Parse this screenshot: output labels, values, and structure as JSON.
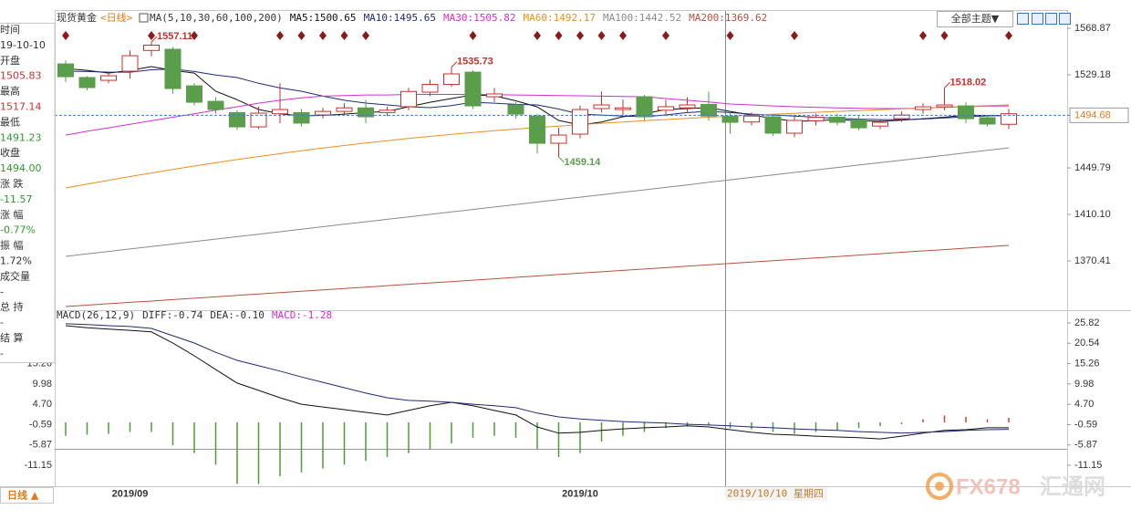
{
  "header": {
    "title": "现货黄金",
    "period": "<日线>",
    "ma_label": "MA(5,10,30,60,100,200)"
  },
  "toolbar": {
    "theme_button": "全部主题▼",
    "period_button": "日线 ▲"
  },
  "info_panel": {
    "rows": [
      {
        "label": "时间",
        "value": "19-10-10",
        "color": "#333333"
      },
      {
        "label": "开盘",
        "value": "1505.83",
        "color": "#d03030"
      },
      {
        "label": "最高",
        "value": "1517.14",
        "color": "#d03030"
      },
      {
        "label": "最低",
        "value": "1491.23",
        "color": "#2e9a2e"
      },
      {
        "label": "收盘",
        "value": "1494.00",
        "color": "#2e9a2e"
      },
      {
        "label": "涨 跌",
        "value": "-11.57",
        "color": "#2e9a2e"
      },
      {
        "label": "涨 幅",
        "value": "-0.77%",
        "color": "#2e9a2e"
      },
      {
        "label": "振 幅",
        "value": "1.72%",
        "color": "#333333"
      },
      {
        "label": "成交量",
        "value": "-",
        "color": "#333333"
      },
      {
        "label": "总 持",
        "value": "-",
        "color": "#333333"
      },
      {
        "label": "结 算",
        "value": "-",
        "color": "#333333"
      }
    ]
  },
  "crosshair_label": "2019/10/10 星期四",
  "watermark": {
    "brand": "FX678",
    "name": "汇通网"
  },
  "chart_data": [
    {
      "type": "candlestick",
      "categories": [
        null,
        null,
        null,
        "2019/09",
        null,
        null,
        null,
        null,
        null,
        null,
        null,
        null,
        null,
        null,
        null,
        null,
        null,
        null,
        null,
        null,
        null,
        null,
        null,
        null,
        "2019/10",
        null,
        null,
        null,
        null,
        null,
        null,
        null,
        null,
        null,
        null,
        null,
        null,
        null,
        null,
        null,
        null,
        null,
        null,
        null,
        null
      ],
      "open": [
        1538.5,
        1526.9,
        1524.5,
        1532.3,
        1550,
        1551,
        1519.8,
        1506.6,
        1497,
        1484.8,
        1496,
        1497,
        1495,
        1498,
        1501,
        1497,
        1502,
        1514.4,
        1521,
        1531.5,
        1510.5,
        1503.5,
        1494,
        1470.8,
        1478.6,
        1500.4,
        1499.6,
        1510.5,
        1499,
        1501,
        1504,
        1494,
        1489,
        1493.4,
        1479.4,
        1490,
        1493,
        1491,
        1485.5,
        1491.8,
        1499.6,
        1501.9,
        1502.7,
        1492.6,
        1487
      ],
      "high": [
        1541.6,
        1528,
        1530,
        1550,
        1557.11,
        1553,
        1522,
        1510,
        1499,
        1502,
        1522,
        1500,
        1501,
        1505,
        1508,
        1502,
        1518,
        1525,
        1535.73,
        1533,
        1518,
        1506,
        1496,
        1484,
        1503,
        1515,
        1508,
        1512,
        1508,
        1510,
        1515,
        1498,
        1497,
        1495,
        1494,
        1496,
        1496,
        1494,
        1491,
        1498,
        1505,
        1518.02,
        1506,
        1495,
        1500
      ],
      "low": [
        1523,
        1516,
        1522,
        1526,
        1545,
        1513,
        1503,
        1496,
        1482,
        1483,
        1488,
        1485,
        1492,
        1496,
        1488,
        1494,
        1499,
        1511,
        1519,
        1500,
        1506,
        1492,
        1462,
        1459.14,
        1475,
        1497,
        1495,
        1490,
        1494,
        1497,
        1490,
        1479,
        1486,
        1477,
        1476,
        1486,
        1486,
        1482,
        1483,
        1489,
        1496,
        1499,
        1488,
        1485,
        1483
      ],
      "close": [
        1527.6,
        1518.3,
        1528.4,
        1545.5,
        1554.5,
        1517.5,
        1505.8,
        1499.6,
        1484.8,
        1496.5,
        1499.6,
        1488,
        1498,
        1501,
        1493.4,
        1499,
        1515,
        1521,
        1530,
        1502.7,
        1512.9,
        1495.7,
        1470.8,
        1477.8,
        1499.6,
        1503.5,
        1501,
        1493.4,
        1502,
        1503.5,
        1494,
        1488.7,
        1494,
        1479.4,
        1490.3,
        1493,
        1488.7,
        1484,
        1488.7,
        1494.9,
        1501.9,
        1503.5,
        1491.8,
        1487.2,
        1496
      ],
      "up_color": "#c8302c",
      "down_color": "#5a9e4b",
      "ylim": [
        1328.4,
        1583.7
      ],
      "yticks": [
        1568.87,
        1529.18,
        1449.79,
        {
          "value": 1410.1,
          "label": "1410.10"
        },
        1370.41
      ],
      "last_price": 1494.68,
      "last_price_color": "#e07a1a",
      "extreme_labels": [
        {
          "index": 4,
          "field": "high"
        },
        {
          "index": 18,
          "field": "high"
        },
        {
          "index": 23,
          "field": "low"
        },
        {
          "index": 41,
          "field": "high"
        }
      ],
      "markers": [
        0,
        4,
        6,
        10,
        11,
        12,
        13,
        14,
        19,
        22,
        23,
        24,
        25,
        26,
        28,
        31,
        34,
        40,
        41,
        44
      ],
      "marker_color": "#8b1a1a",
      "series": [
        {
          "name": "MA5:1500.65",
          "color": "#111111",
          "values": [
            1534.6,
            1533,
            1530.7,
            1533,
            1536.2,
            1533,
            1530.7,
            1515.2,
            1508,
            1499.6,
            1496,
            1494.2,
            1494.6,
            1495.7,
            1497,
            1498,
            1502,
            1505.8,
            1509,
            1512.1,
            1511.3,
            1507,
            1501.9,
            1490.3,
            1486.4,
            1489,
            1493.4,
            1496,
            1499.6,
            1500.4,
            1501.2,
            1498,
            1494.9,
            1492,
            1489.5,
            1490,
            1491,
            1490,
            1489.5,
            1490.5,
            1491.8,
            1493,
            1494.9,
            1494.5,
            1494.2
          ]
        },
        {
          "name": "MA10:1495.65",
          "color": "#1e2a78",
          "values": [
            1532.3,
            1532,
            1531.5,
            1531.5,
            1533.5,
            1534.2,
            1532,
            1529,
            1526.9,
            1522,
            1518,
            1515.2,
            1511,
            1507.5,
            1505.1,
            1503.5,
            1502,
            1501.2,
            1503,
            1505.8,
            1505,
            1504,
            1503.5,
            1500,
            1495.7,
            1494.9,
            1494,
            1493.4,
            1495,
            1497,
            1498,
            1497,
            1495.7,
            1495,
            1494,
            1493,
            1492,
            1491.5,
            1491,
            1491,
            1491.5,
            1492.5,
            1493.4,
            1494.2,
            1494.9
          ]
        },
        {
          "name": "MA30:1505.82",
          "color": "#d030d0",
          "values": [
            1477.8,
            1481,
            1484,
            1487,
            1490,
            1493,
            1496,
            1499,
            1502,
            1505,
            1507.5,
            1509.5,
            1511,
            1511.5,
            1512,
            1512,
            1512.5,
            1512.5,
            1512.5,
            1512.5,
            1512.3,
            1512,
            1511.8,
            1511.5,
            1511.3,
            1511,
            1510.8,
            1510.5,
            1509,
            1507.5,
            1506,
            1504.3,
            1503.5,
            1502.7,
            1502,
            1501.5,
            1501,
            1500.6,
            1500.4,
            1500.4,
            1500.8,
            1501.5,
            1502,
            1502.5,
            1502.7
          ]
        },
        {
          "name": "MA60:1492.17",
          "color": "#e8901e",
          "values": [
            1432.7,
            1436,
            1439.2,
            1442.4,
            1445.5,
            1448.5,
            1451.4,
            1454.2,
            1456.9,
            1459.5,
            1462,
            1464.4,
            1466.7,
            1468.9,
            1471,
            1473,
            1474.9,
            1476.7,
            1478.4,
            1480,
            1481.5,
            1482.9,
            1484.2,
            1485.5,
            1486.7,
            1487.9,
            1489,
            1490.1,
            1491.1,
            1492.1,
            1493,
            1493.9,
            1494.8,
            1495.6,
            1496.4,
            1497.2,
            1498,
            1498.7,
            1499.4,
            1500.1,
            1500.8,
            1501.5,
            1502.2,
            1502.9,
            1503.5
          ]
        },
        {
          "name": "MA100:1442.52",
          "color": "#8a8a8a",
          "values": [
            1374.3,
            1376.4,
            1378.5,
            1380.6,
            1382.7,
            1384.8,
            1386.9,
            1389.0,
            1391.1,
            1393.2,
            1395.3,
            1397.5,
            1399.6,
            1401.7,
            1403.8,
            1405.9,
            1408.0,
            1410.1,
            1412.2,
            1414.3,
            1416.4,
            1418.5,
            1420.6,
            1422.7,
            1424.8,
            1426.9,
            1429.0,
            1431.1,
            1433.2,
            1435.3,
            1437.5,
            1439.6,
            1441.7,
            1443.8,
            1445.9,
            1448.0,
            1450.1,
            1452.2,
            1454.3,
            1456.4,
            1458.5,
            1460.6,
            1462.7,
            1464.8,
            1466.9
          ]
        },
        {
          "name": "MA200:1369.62",
          "color": "#b8503a",
          "values": [
            1331.5,
            1332.7,
            1333.9,
            1335.1,
            1336.2,
            1337.4,
            1338.6,
            1339.8,
            1341.0,
            1342.2,
            1343.4,
            1344.5,
            1345.7,
            1346.9,
            1348.1,
            1349.3,
            1350.5,
            1351.7,
            1352.8,
            1354.0,
            1355.2,
            1356.4,
            1357.6,
            1358.8,
            1360.0,
            1361.2,
            1362.3,
            1363.5,
            1364.7,
            1365.9,
            1367.1,
            1368.3,
            1369.5,
            1370.6,
            1371.8,
            1373.0,
            1374.2,
            1375.4,
            1376.6,
            1377.8,
            1379.0,
            1380.1,
            1381.3,
            1382.5,
            1383.7
          ]
        }
      ]
    },
    {
      "type": "macd",
      "title": "MACD(26,12,9)",
      "ylim": [
        -16.6,
        29.14
      ],
      "yticks": [
        25.82,
        20.54,
        15.26,
        9.98,
        {
          "value": 4.7,
          "label": "4.70"
        },
        -0.59,
        -5.87,
        -11.15
      ],
      "series": [
        {
          "name": "DIFF:-0.74",
          "color": "#111111",
          "values": [
            25.1,
            24.6,
            24.2,
            23.9,
            23.5,
            20.6,
            17.3,
            13.7,
            10.2,
            8.3,
            6.4,
            4.7,
            4.0,
            3.3,
            2.6,
            1.9,
            3.1,
            4.3,
            5.2,
            4.3,
            3.1,
            1.9,
            -1.2,
            -2.8,
            -2.6,
            -2.1,
            -1.7,
            -1.4,
            -1.2,
            -0.9,
            -1.2,
            -1.9,
            -2.6,
            -3.1,
            -3.3,
            -3.6,
            -3.8,
            -4.0,
            -4.3,
            -3.6,
            -2.8,
            -2.1,
            -1.9,
            -1.4,
            -1.4
          ]
        },
        {
          "name": "DEA:-0.10",
          "color": "#1e2a78",
          "values": [
            25.6,
            25.4,
            25.1,
            24.9,
            24.4,
            22.5,
            20.6,
            18.2,
            16.1,
            14.7,
            13.3,
            11.8,
            10.4,
            9.0,
            7.6,
            6.4,
            5.7,
            5.5,
            5.2,
            4.7,
            4.3,
            3.8,
            2.4,
            1.4,
            0.9,
            0.5,
            0.2,
            0,
            -0.2,
            -0.5,
            -0.7,
            -0.9,
            -1.2,
            -1.4,
            -1.7,
            -1.9,
            -2.1,
            -2.4,
            -2.6,
            -2.8,
            -2.6,
            -2.4,
            -2.1,
            -1.9,
            -1.8
          ]
        }
      ],
      "histogram": {
        "name": "MACD:-1.28",
        "label_color": "#d030d0",
        "up_color": "#d0403a",
        "down_color": "#4f9a3c",
        "values": [
          -3.5,
          -3.2,
          -3,
          -2.5,
          -2.5,
          -6,
          -8,
          -11,
          -16,
          -16,
          -14,
          -13,
          -12,
          -11,
          -10,
          -9,
          -8,
          -7,
          -5.5,
          -4,
          -3.5,
          -4,
          -7,
          -9,
          -8,
          -5,
          -3.5,
          -2.5,
          -1.5,
          -1,
          -0.8,
          -1.5,
          -1.8,
          -2.5,
          -3,
          -2.5,
          -2,
          -1.5,
          -1,
          -0.5,
          0.8,
          1.8,
          1.4,
          0.8,
          1.2
        ]
      }
    }
  ]
}
